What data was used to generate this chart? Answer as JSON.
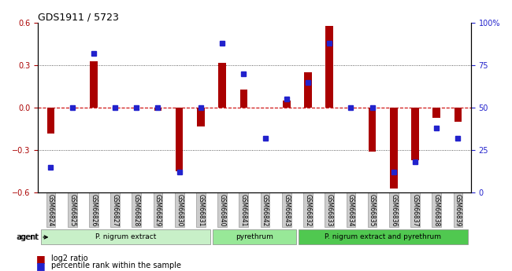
{
  "title": "GDS1911 / 5723",
  "samples": [
    "GSM66824",
    "GSM66825",
    "GSM66826",
    "GSM66827",
    "GSM66828",
    "GSM66829",
    "GSM66830",
    "GSM66831",
    "GSM66840",
    "GSM66841",
    "GSM66842",
    "GSM66843",
    "GSM66832",
    "GSM66833",
    "GSM66834",
    "GSM66835",
    "GSM66836",
    "GSM66837",
    "GSM66838",
    "GSM66839"
  ],
  "log2_ratio": [
    -0.18,
    0.0,
    0.33,
    0.0,
    0.0,
    -0.02,
    -0.45,
    -0.13,
    0.32,
    0.13,
    0.0,
    0.05,
    0.25,
    0.58,
    0.0,
    -0.31,
    -0.57,
    -0.37,
    -0.07,
    -0.1
  ],
  "pct_rank": [
    15,
    50,
    82,
    50,
    50,
    50,
    12,
    50,
    88,
    70,
    32,
    55,
    65,
    88,
    50,
    50,
    12,
    18,
    38,
    32
  ],
  "groups": [
    {
      "label": "P. nigrum extract",
      "start": 0,
      "end": 8,
      "color": "#c8f0c8"
    },
    {
      "label": "pyrethrum",
      "start": 8,
      "end": 12,
      "color": "#98e898"
    },
    {
      "label": "P. nigrum extract and pyrethrum",
      "start": 12,
      "end": 20,
      "color": "#50c850"
    }
  ],
  "ylim_left": [
    -0.6,
    0.6
  ],
  "ylim_right": [
    0,
    100
  ],
  "bar_color": "#aa0000",
  "dot_color": "#2222cc",
  "hline_color": "#cc0000",
  "grid_color": "#333333",
  "bg_color": "#ffffff",
  "tick_label_bg": "#cccccc"
}
